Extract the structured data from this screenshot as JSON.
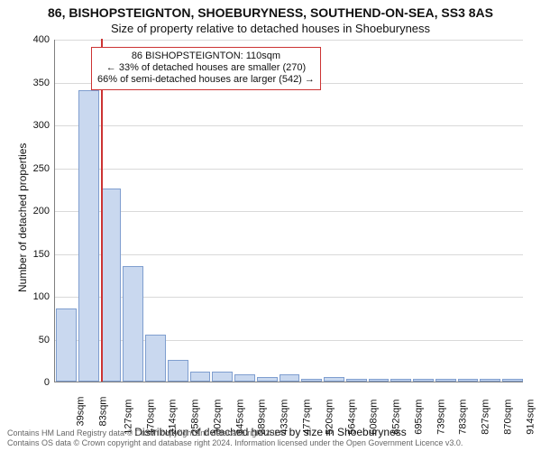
{
  "title_main": "86, BISHOPSTEIGNTON, SHOEBURYNESS, SOUTHEND-ON-SEA, SS3 8AS",
  "title_sub": "Size of property relative to detached houses in Shoeburyness",
  "xlabel": "Distribution of detached houses by size in Shoeburyness",
  "ylabel": "Number of detached properties",
  "chart": {
    "type": "bar",
    "background_color": "#ffffff",
    "grid_color": "#d9d9d9",
    "axis_color": "#7f7f7f",
    "bar_fill": "#c9d8ef",
    "bar_edge": "#7f9ecf",
    "bar_width": 0.92,
    "marker_color": "#cc3333",
    "annotation_border": "#cc3333",
    "font_family": "Arial",
    "title_fontsize": 14,
    "subtitle_fontsize": 13,
    "label_fontsize": 12,
    "tick_fontsize": 11,
    "annotation_fontsize": 11,
    "ylim": [
      0,
      400
    ],
    "yticks": [
      0,
      50,
      100,
      150,
      200,
      250,
      300,
      350,
      400
    ],
    "xtick_labels": [
      "39sqm",
      "83sqm",
      "127sqm",
      "170sqm",
      "214sqm",
      "258sqm",
      "302sqm",
      "345sqm",
      "389sqm",
      "433sqm",
      "477sqm",
      "520sqm",
      "564sqm",
      "608sqm",
      "652sqm",
      "695sqm",
      "739sqm",
      "783sqm",
      "827sqm",
      "870sqm",
      "914sqm"
    ],
    "values": [
      85,
      340,
      225,
      135,
      55,
      25,
      12,
      12,
      8,
      5,
      8,
      3,
      5,
      3,
      3,
      3,
      3,
      3,
      3,
      3,
      3
    ],
    "marker_x_index": 1.55
  },
  "annotation": {
    "lines": [
      "86 BISHOPSTEIGNTON: 110sqm",
      "← 33% of detached houses are smaller (270)",
      "66% of semi-detached houses are larger (542) →"
    ]
  },
  "footer": {
    "line1": "Contains HM Land Registry data © Crown copyright and database right 2024.",
    "line2": "Contains OS data © Crown copyright and database right 2024. Information licensed under the Open Government Licence v3.0."
  }
}
